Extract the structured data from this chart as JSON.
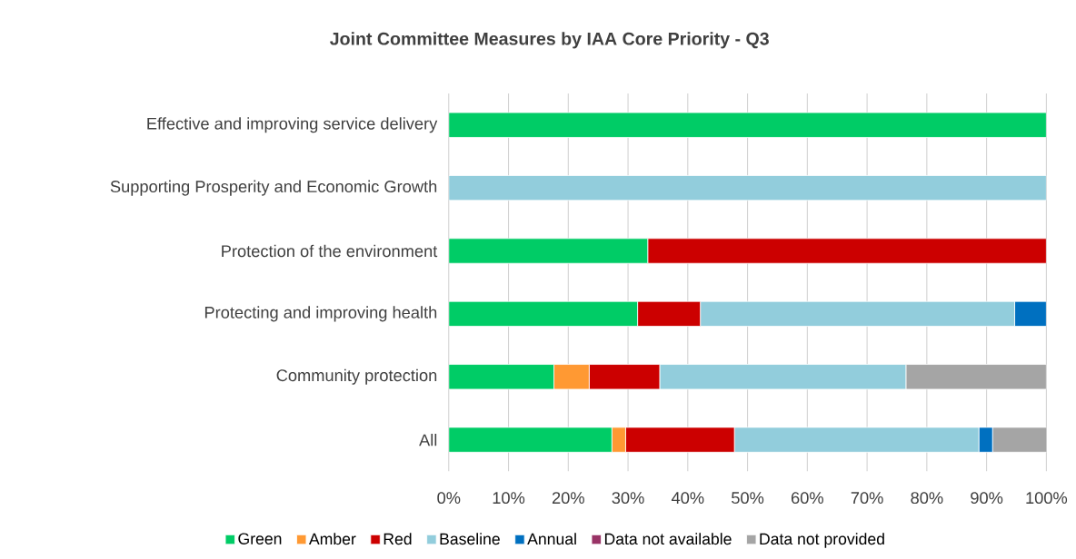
{
  "chart_data": {
    "type": "bar",
    "orientation": "horizontal",
    "stacked": true,
    "title": "Joint Committee Measures by IAA Core Priority - Q3",
    "categories": [
      "Effective and improving service delivery",
      "Supporting Prosperity and Economic Growth",
      "Protection of the environment",
      "Protecting and improving health",
      "Community protection",
      "All"
    ],
    "series": [
      {
        "name": "Green",
        "color": "#00cc66",
        "values": [
          100,
          0,
          33.3,
          31.6,
          17.6,
          27.3
        ]
      },
      {
        "name": "Amber",
        "color": "#ff9933",
        "values": [
          0,
          0,
          0,
          0,
          5.9,
          2.3
        ]
      },
      {
        "name": "Red",
        "color": "#cc0000",
        "values": [
          0,
          0,
          66.7,
          10.5,
          11.8,
          18.2
        ]
      },
      {
        "name": "Baseline",
        "color": "#92cddc",
        "values": [
          0,
          100,
          0,
          52.6,
          41.2,
          40.9
        ]
      },
      {
        "name": "Annual",
        "color": "#0070c0",
        "values": [
          0,
          0,
          0,
          5.3,
          0,
          2.3
        ]
      },
      {
        "name": "Data not available",
        "color": "#993366",
        "values": [
          0,
          0,
          0,
          0,
          0,
          0
        ]
      },
      {
        "name": "Data not provided",
        "color": "#a5a5a5",
        "values": [
          0,
          0,
          0,
          0,
          23.5,
          9.1
        ]
      }
    ],
    "xlim": [
      0,
      100
    ],
    "xticks": [
      {
        "value": 0,
        "label": "0%"
      },
      {
        "value": 10,
        "label": "10%"
      },
      {
        "value": 20,
        "label": "20%"
      },
      {
        "value": 30,
        "label": "30%"
      },
      {
        "value": 40,
        "label": "40%"
      },
      {
        "value": 50,
        "label": "50%"
      },
      {
        "value": 60,
        "label": "60%"
      },
      {
        "value": 70,
        "label": "70%"
      },
      {
        "value": 80,
        "label": "80%"
      },
      {
        "value": 90,
        "label": "90%"
      },
      {
        "value": 100,
        "label": "100%"
      }
    ],
    "grid": "x",
    "legend": "bottom"
  }
}
